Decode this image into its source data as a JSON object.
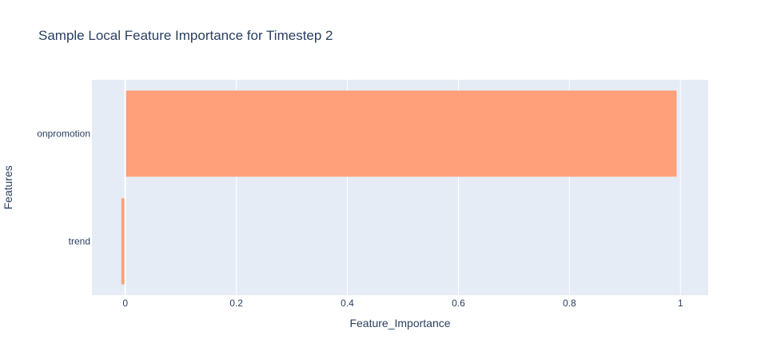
{
  "chart_data": {
    "type": "bar",
    "orientation": "horizontal",
    "title": "Sample Local Feature Importance for Timestep 2",
    "xlabel": "Feature_Importance",
    "ylabel": "Features",
    "categories": [
      "onpromotion",
      "trend"
    ],
    "values": [
      0.993,
      -0.007
    ],
    "xlim": [
      -0.06,
      1.05
    ],
    "x_ticks": [
      {
        "value": 0,
        "label": "0"
      },
      {
        "value": 0.2,
        "label": "0.2"
      },
      {
        "value": 0.4,
        "label": "0.4"
      },
      {
        "value": 0.6,
        "label": "0.6"
      },
      {
        "value": 0.8,
        "label": "0.8"
      },
      {
        "value": 1,
        "label": "1"
      }
    ],
    "grid": true,
    "colors": {
      "bar": "#ffa07a",
      "plot_background": "#e5ecf6",
      "grid": "#ffffff",
      "text": "#2a3f5f"
    }
  }
}
